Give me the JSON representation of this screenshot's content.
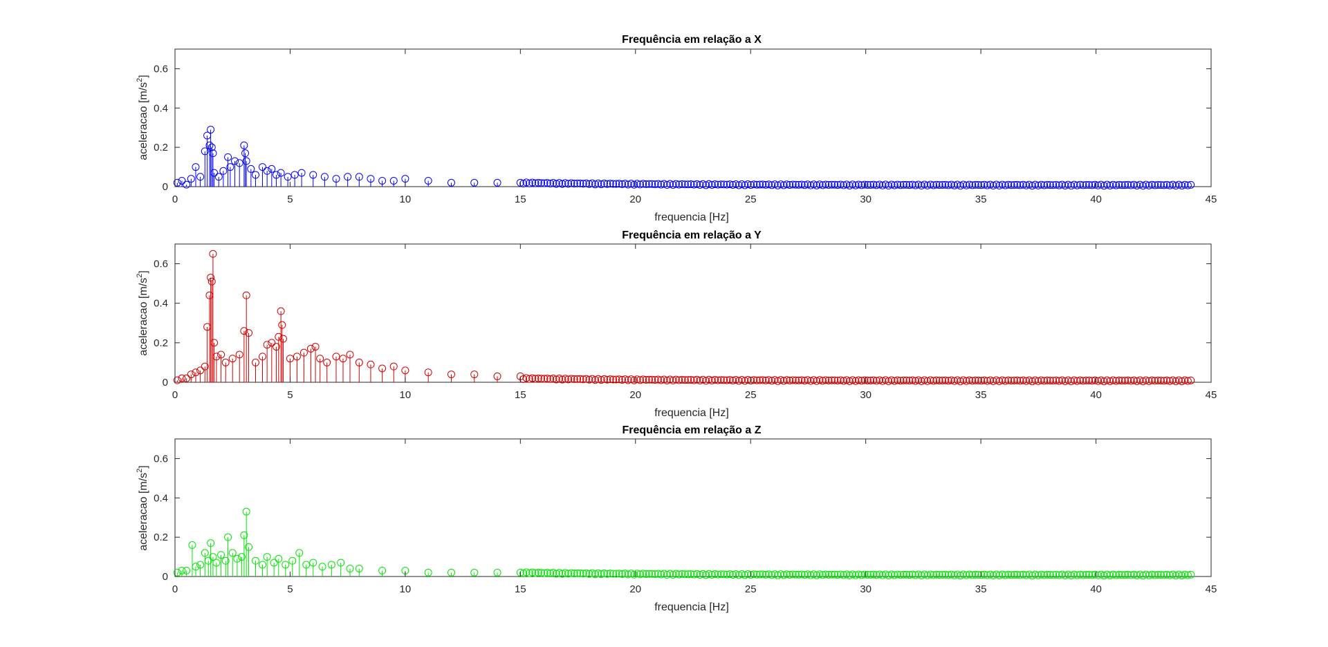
{
  "chart_data": [
    {
      "type": "scatter",
      "style": "stem",
      "marker": "circle",
      "title": "Frequência em relação a X",
      "xlabel": "frequencia [Hz]",
      "ylabel": "aceleracao [m/s^2]",
      "ylabel_text": "aceleracao [m/s",
      "ylabel_sup": "2",
      "ylabel_close": "]",
      "xlim": [
        0,
        45
      ],
      "ylim": [
        0,
        0.7
      ],
      "xticks": [
        "0",
        "5",
        "10",
        "15",
        "20",
        "25",
        "30",
        "35",
        "40",
        "45"
      ],
      "yticks": [
        "0",
        "0.2",
        "0.4",
        "0.6"
      ],
      "grid": false,
      "color": "#0000ff",
      "series": [
        {
          "x": [
            0.1,
            0.3,
            0.5,
            0.7,
            0.9,
            1.1,
            1.3,
            1.4,
            1.5,
            1.55,
            1.6,
            1.65,
            1.7,
            1.9,
            2.1,
            2.3,
            2.4,
            2.6,
            2.8,
            3.0,
            3.05,
            3.1,
            3.3,
            3.5,
            3.8,
            4.0,
            4.2,
            4.4,
            4.6,
            4.9,
            5.2,
            5.5,
            6.0,
            6.5,
            7.0,
            7.5,
            8.0,
            8.5,
            9.0,
            9.5,
            10.0,
            11.0,
            12.0,
            13.0,
            14.0,
            15.0
          ],
          "y": [
            0.02,
            0.03,
            0.01,
            0.04,
            0.1,
            0.05,
            0.18,
            0.26,
            0.21,
            0.29,
            0.2,
            0.17,
            0.07,
            0.05,
            0.08,
            0.15,
            0.1,
            0.13,
            0.12,
            0.21,
            0.17,
            0.13,
            0.09,
            0.06,
            0.1,
            0.08,
            0.09,
            0.06,
            0.07,
            0.05,
            0.06,
            0.07,
            0.06,
            0.05,
            0.04,
            0.05,
            0.05,
            0.04,
            0.03,
            0.03,
            0.04,
            0.03,
            0.02,
            0.02,
            0.02,
            0.02
          ]
        }
      ]
    },
    {
      "type": "scatter",
      "style": "stem",
      "marker": "circle",
      "title": "Frequência em relação a Y",
      "xlabel": "frequencia [Hz]",
      "ylabel": "aceleracao [m/s^2]",
      "ylabel_text": "aceleracao [m/s",
      "ylabel_sup": "2",
      "ylabel_close": "]",
      "xlim": [
        0,
        45
      ],
      "ylim": [
        0,
        0.7
      ],
      "xticks": [
        "0",
        "5",
        "10",
        "15",
        "20",
        "25",
        "30",
        "35",
        "40",
        "45"
      ],
      "yticks": [
        "0",
        "0.2",
        "0.4",
        "0.6"
      ],
      "grid": false,
      "color": "#d40000",
      "series": [
        {
          "x": [
            0.1,
            0.3,
            0.5,
            0.7,
            0.9,
            1.1,
            1.3,
            1.4,
            1.5,
            1.55,
            1.6,
            1.65,
            1.7,
            1.8,
            2.0,
            2.2,
            2.5,
            2.8,
            3.0,
            3.1,
            3.2,
            3.5,
            3.8,
            4.0,
            4.2,
            4.4,
            4.5,
            4.6,
            4.65,
            4.7,
            5.0,
            5.3,
            5.6,
            5.9,
            6.1,
            6.3,
            6.6,
            7.0,
            7.3,
            7.6,
            8.0,
            8.5,
            9.0,
            9.5,
            10.0,
            11.0,
            12.0,
            13.0,
            14.0,
            15.0
          ],
          "y": [
            0.01,
            0.02,
            0.02,
            0.04,
            0.05,
            0.06,
            0.08,
            0.28,
            0.44,
            0.53,
            0.51,
            0.65,
            0.2,
            0.13,
            0.14,
            0.1,
            0.12,
            0.14,
            0.26,
            0.44,
            0.25,
            0.1,
            0.13,
            0.19,
            0.2,
            0.18,
            0.23,
            0.36,
            0.29,
            0.22,
            0.12,
            0.13,
            0.15,
            0.17,
            0.18,
            0.12,
            0.1,
            0.13,
            0.12,
            0.14,
            0.1,
            0.09,
            0.07,
            0.08,
            0.06,
            0.05,
            0.04,
            0.04,
            0.03,
            0.03
          ]
        }
      ]
    },
    {
      "type": "scatter",
      "style": "stem",
      "marker": "circle",
      "title": "Frequência em relação a Z",
      "xlabel": "frequencia [Hz]",
      "ylabel": "aceleracao [m/s^2]",
      "ylabel_text": "aceleracao [m/s",
      "ylabel_sup": "2",
      "ylabel_close": "]",
      "xlim": [
        0,
        45
      ],
      "ylim": [
        0,
        0.7
      ],
      "xticks": [
        "0",
        "5",
        "10",
        "15",
        "20",
        "25",
        "30",
        "35",
        "40",
        "45"
      ],
      "yticks": [
        "0",
        "0.2",
        "0.4",
        "0.6"
      ],
      "grid": false,
      "color": "#00e600",
      "series": [
        {
          "x": [
            0.1,
            0.3,
            0.5,
            0.75,
            0.9,
            1.1,
            1.3,
            1.45,
            1.55,
            1.65,
            1.8,
            2.0,
            2.2,
            2.3,
            2.5,
            2.7,
            2.9,
            3.0,
            3.1,
            3.2,
            3.5,
            3.8,
            4.0,
            4.3,
            4.5,
            4.8,
            5.1,
            5.4,
            5.7,
            6.0,
            6.4,
            6.8,
            7.2,
            7.6,
            8.0,
            9.0,
            10.0,
            11.0,
            12.0,
            13.0,
            14.0,
            15.0
          ],
          "y": [
            0.02,
            0.03,
            0.03,
            0.16,
            0.05,
            0.06,
            0.12,
            0.08,
            0.17,
            0.1,
            0.07,
            0.11,
            0.08,
            0.2,
            0.12,
            0.09,
            0.1,
            0.21,
            0.33,
            0.15,
            0.08,
            0.06,
            0.1,
            0.07,
            0.09,
            0.06,
            0.08,
            0.12,
            0.06,
            0.07,
            0.05,
            0.06,
            0.07,
            0.04,
            0.04,
            0.03,
            0.03,
            0.02,
            0.02,
            0.02,
            0.02,
            0.02
          ]
        }
      ]
    }
  ]
}
